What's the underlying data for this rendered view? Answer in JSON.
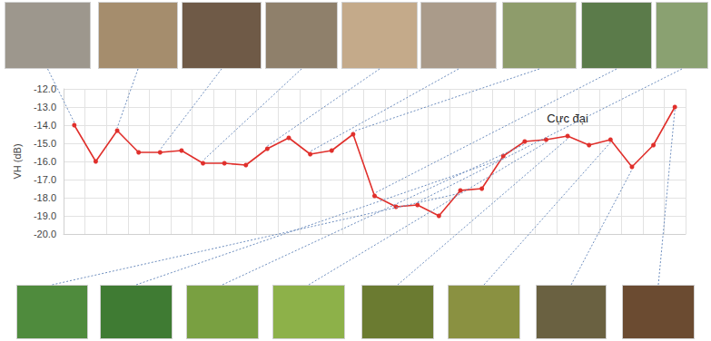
{
  "chart_data": {
    "type": "line",
    "y_label": "VH (dB)",
    "categories": [
      null,
      null,
      null,
      null,
      null,
      null,
      null,
      null,
      null,
      null,
      null,
      null,
      null,
      null,
      null,
      null,
      null,
      null,
      null,
      null,
      null,
      null,
      null,
      null,
      null,
      null,
      null,
      null,
      null
    ],
    "values": [
      -14.0,
      -16.0,
      -14.3,
      -15.5,
      -15.5,
      -15.4,
      -16.1,
      -16.1,
      -16.2,
      -15.3,
      -14.7,
      -15.6,
      -15.4,
      -14.5,
      -17.9,
      -18.5,
      -18.4,
      -19.0,
      -17.6,
      -17.5,
      -15.7,
      -14.9,
      -14.8,
      -14.6,
      -15.1,
      -14.8,
      -16.3,
      -15.1,
      -13.0
    ],
    "color": "#e0302c",
    "marker": "circle",
    "ylim": [
      -20,
      -12
    ],
    "yticks": [
      {
        "value": -20,
        "label": "-20.0"
      },
      {
        "value": -19,
        "label": "-19.0"
      },
      {
        "value": -18,
        "label": "-18.0"
      },
      {
        "value": -17,
        "label": "-17.0"
      },
      {
        "value": -16,
        "label": "-16.0"
      },
      {
        "value": -15,
        "label": "-15.0"
      },
      {
        "value": -14,
        "label": "-14.0"
      },
      {
        "value": -13,
        "label": "-13.0"
      },
      {
        "value": -12,
        "label": "-12.0"
      }
    ],
    "grid": true,
    "tick_labels": "y",
    "annotations": [
      {
        "text": "Cực đại",
        "index": 23,
        "y": -13.6
      }
    ]
  }
}
